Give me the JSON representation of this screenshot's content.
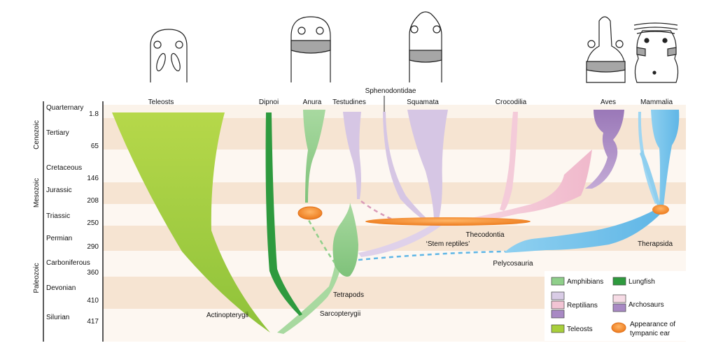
{
  "eras": [
    "Cenozoic",
    "Mesozoic",
    "Paleozoic"
  ],
  "periods": [
    {
      "name": "Quarternary",
      "age": "1.8"
    },
    {
      "name": "Tertiary",
      "age": "65"
    },
    {
      "name": "Cretaceous",
      "age": "146"
    },
    {
      "name": "Jurassic",
      "age": "208"
    },
    {
      "name": "Triassic",
      "age": "250"
    },
    {
      "name": "Permian",
      "age": "290"
    },
    {
      "name": "Carboniferous",
      "age": "360"
    },
    {
      "name": "Devonian",
      "age": "410"
    },
    {
      "name": "Silurian",
      "age": "417"
    }
  ],
  "taxa": {
    "teleosts": "Teleosts",
    "dipnoi": "Dipnoi",
    "anura": "Anura",
    "testudines": "Testudines",
    "sphenodontidae": "Sphenodontidae",
    "squamata": "Squamata",
    "crocodilia": "Crocodilia",
    "aves": "Aves",
    "mammalia": "Mammalia",
    "thecodontia": "Thecodontia",
    "stem_reptiles": "‘Stem reptiles’",
    "therapsida": "Therapsida",
    "pelycosauria": "Pelycosauria",
    "tetrapods": "Tetrapods",
    "sarcopterygii": "Sarcopterygii",
    "actinopterygii": "Actinopterygii"
  },
  "legend": {
    "amphibians": "Amphibians",
    "lungfish": "Lungfish",
    "reptilians": "Reptilians",
    "archosaurs": "Archosaurs",
    "teleosts": "Teleosts",
    "tympanic_line1": "Appearance of",
    "tympanic_line2": "tympanic ear"
  },
  "colors": {
    "teleost": "#a8cf3c",
    "amphibian": "#8fcf8a",
    "lungfish": "#2e9a3e",
    "reptile_light": "#d9cce6",
    "reptile_pink": "#f2c4d4",
    "archosaur_purple": "#a889c4",
    "mammal": "#7cc6ee",
    "tympanic": "#f08a2c",
    "band": "#f6e6d4"
  }
}
